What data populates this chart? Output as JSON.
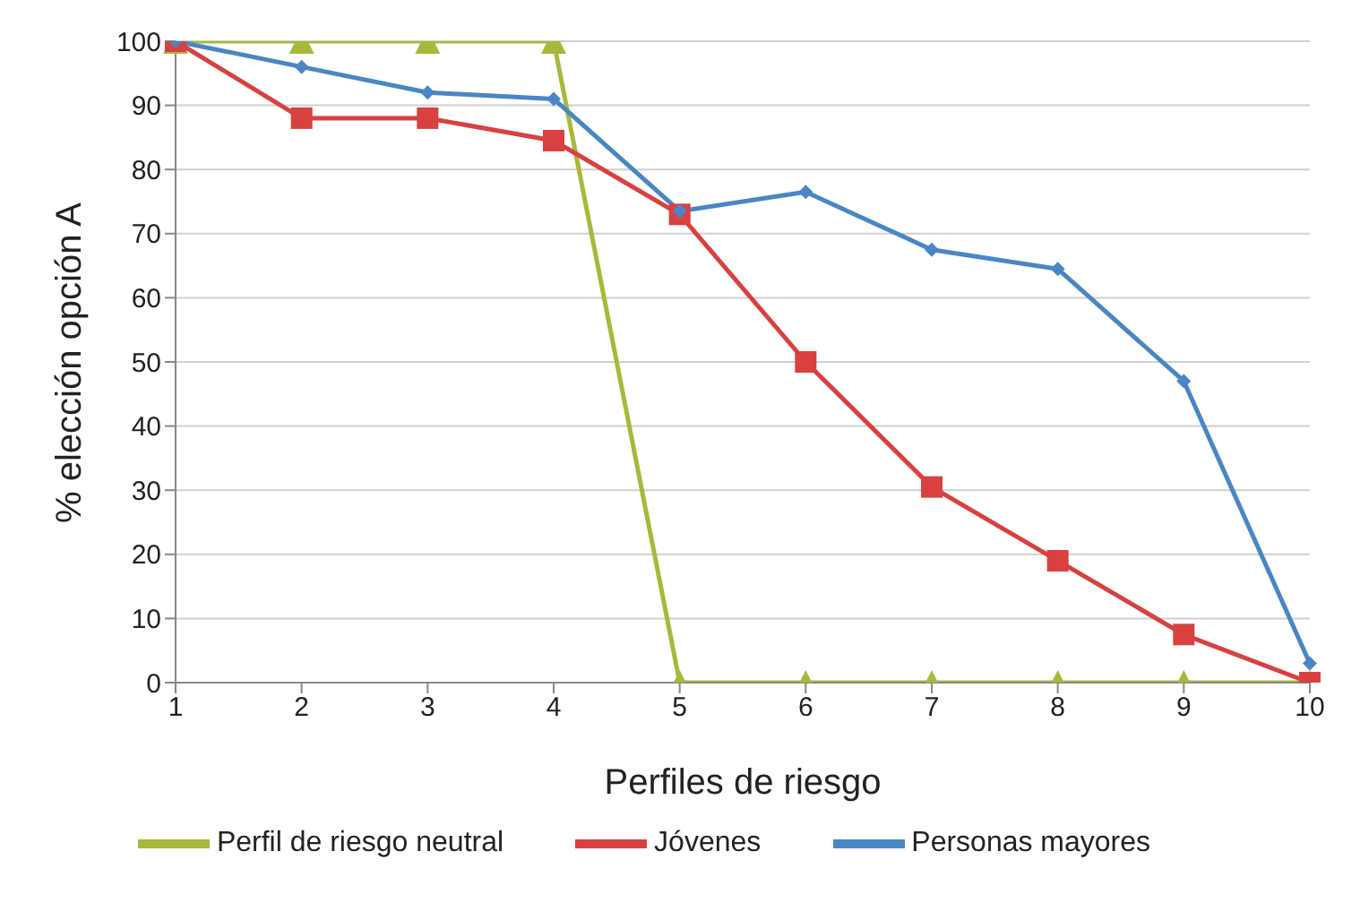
{
  "chart_data": {
    "type": "line",
    "xlabel": "Perfiles de riesgo",
    "ylabel": "% elección opción A",
    "categories": [
      "1",
      "2",
      "3",
      "4",
      "5",
      "6",
      "7",
      "8",
      "9",
      "10"
    ],
    "series": [
      {
        "name": "Personas mayores",
        "color": "#4a86c5",
        "marker": "diamond",
        "values": [
          100,
          96,
          92,
          91,
          73.5,
          76.5,
          67.5,
          64.5,
          47,
          3
        ]
      },
      {
        "name": "Jóvenes",
        "color": "#d94040",
        "marker": "square",
        "values": [
          100,
          88,
          88,
          84.5,
          73,
          50,
          30.5,
          19,
          7.5,
          0
        ]
      },
      {
        "name": "Perfil de riesgo neutral",
        "color": "#a8b83a",
        "marker": "triangle",
        "values": [
          100,
          100,
          100,
          100,
          0,
          0,
          0,
          0,
          0,
          0
        ]
      }
    ],
    "ylim": [
      0,
      100
    ],
    "yticks": [
      0,
      10,
      20,
      30,
      40,
      50,
      60,
      70,
      80,
      90,
      100
    ],
    "grid": "y",
    "legend": "bottom",
    "line_style": "solid"
  }
}
